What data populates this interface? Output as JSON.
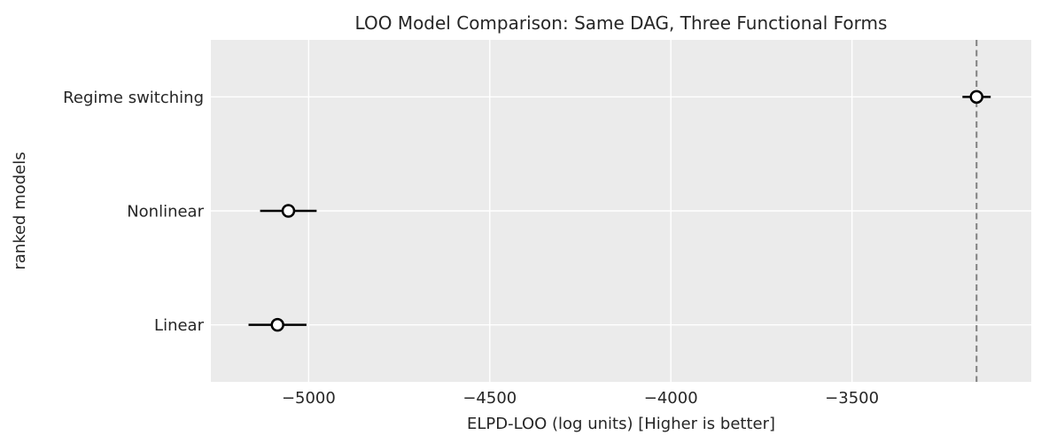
{
  "chart_data": {
    "type": "scatter",
    "title": "LOO Model Comparison: Same DAG, Three Functional Forms",
    "xlabel": "ELPD-LOO (log units) [Higher is better]",
    "ylabel": "ranked models",
    "categories": [
      "Regime switching",
      "Nonlinear",
      "Linear"
    ],
    "points": [
      {
        "label": "Regime switching",
        "elpd": -3156,
        "se": 39
      },
      {
        "label": "Nonlinear",
        "elpd": -5056,
        "se": 78
      },
      {
        "label": "Linear",
        "elpd": -5086,
        "se": 80
      }
    ],
    "reference_line_x": -3156,
    "x_ticks": [
      -5000,
      -4500,
      -4000,
      -3500
    ],
    "x_tick_labels": [
      "−5000",
      "−4500",
      "−4000",
      "−3500"
    ],
    "xlim": [
      -5270,
      -3005
    ],
    "grid": true,
    "legend": null,
    "colors": {
      "plot_background": "#ebebeb",
      "grid_line": "#ffffff",
      "marker_fill": "#ffffff",
      "marker_edge": "#000000",
      "error_bar": "#000000",
      "reference_line": "#7f7f7f",
      "text": "#262626"
    }
  }
}
